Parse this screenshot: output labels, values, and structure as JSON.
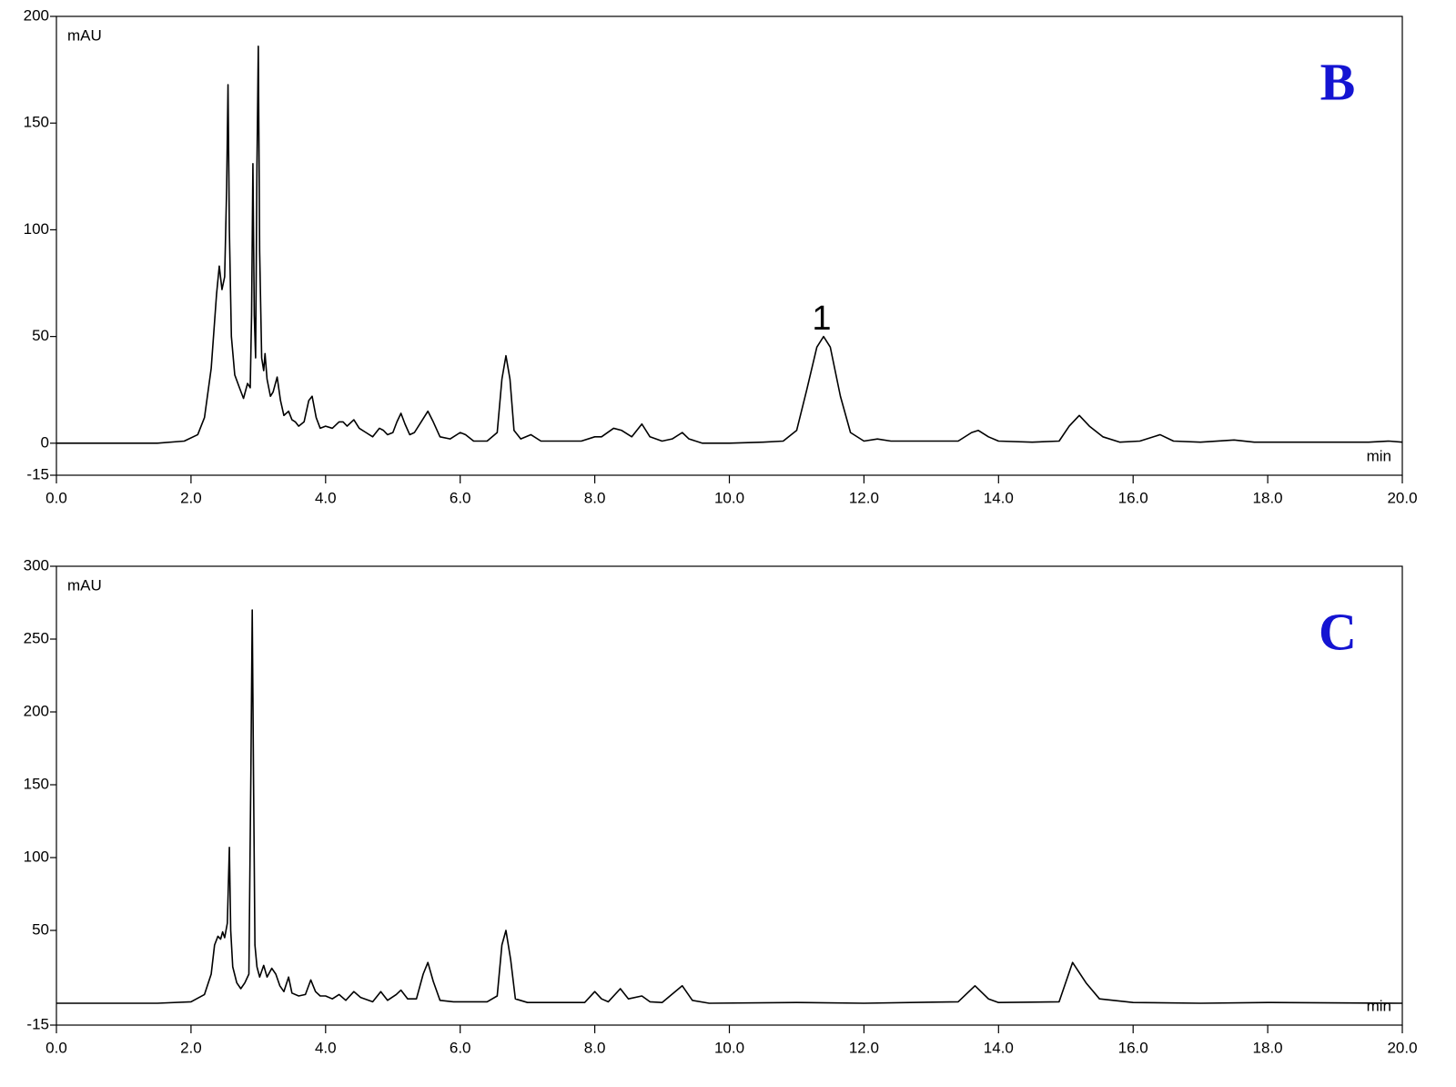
{
  "chart_data": [
    {
      "type": "line",
      "label": "B",
      "ylabel": "mAU",
      "xlabel": "min",
      "annotation": "1",
      "color": "#000000",
      "xlim": [
        0,
        20
      ],
      "ylim": [
        -15,
        200
      ],
      "xticks": [
        {
          "value": 0,
          "label": "0.0"
        },
        {
          "value": 2,
          "label": "2.0"
        },
        {
          "value": 4,
          "label": "4.0"
        },
        {
          "value": 6,
          "label": "6.0"
        },
        {
          "value": 8,
          "label": "8.0"
        },
        {
          "value": 10,
          "label": "10.0"
        },
        {
          "value": 12,
          "label": "12.0"
        },
        {
          "value": 14,
          "label": "14.0"
        },
        {
          "value": 16,
          "label": "16.0"
        },
        {
          "value": 18,
          "label": "18.0"
        },
        {
          "value": 20,
          "label": "20.0"
        }
      ],
      "yticks": [
        -15,
        0,
        50,
        100,
        150,
        200
      ],
      "x": [
        0,
        1.5,
        1.9,
        2.1,
        2.2,
        2.3,
        2.38,
        2.42,
        2.46,
        2.5,
        2.53,
        2.55,
        2.57,
        2.6,
        2.65,
        2.72,
        2.78,
        2.84,
        2.88,
        2.9,
        2.92,
        2.94,
        2.96,
        2.98,
        3.0,
        3.02,
        3.05,
        3.08,
        3.1,
        3.13,
        3.18,
        3.22,
        3.28,
        3.33,
        3.38,
        3.45,
        3.5,
        3.55,
        3.6,
        3.68,
        3.75,
        3.8,
        3.86,
        3.92,
        4.0,
        4.1,
        4.2,
        4.26,
        4.32,
        4.42,
        4.5,
        4.6,
        4.7,
        4.8,
        4.86,
        4.92,
        5.0,
        5.06,
        5.12,
        5.18,
        5.25,
        5.32,
        5.42,
        5.52,
        5.6,
        5.7,
        5.85,
        6.0,
        6.08,
        6.2,
        6.4,
        6.55,
        6.62,
        6.68,
        6.74,
        6.8,
        6.9,
        7.05,
        7.2,
        7.5,
        7.8,
        8.0,
        8.1,
        8.28,
        8.4,
        8.55,
        8.7,
        8.82,
        9.0,
        9.15,
        9.3,
        9.4,
        9.6,
        10.0,
        10.5,
        10.8,
        11.0,
        11.15,
        11.3,
        11.4,
        11.5,
        11.65,
        11.8,
        12.0,
        12.2,
        12.4,
        13.0,
        13.4,
        13.6,
        13.7,
        13.85,
        14.0,
        14.5,
        14.9,
        15.05,
        15.2,
        15.35,
        15.55,
        15.8,
        16.1,
        16.4,
        16.6,
        17.0,
        17.5,
        17.8,
        18.5,
        19.0,
        19.5,
        19.8,
        20.0
      ],
      "values": [
        0,
        0,
        1,
        4,
        12,
        35,
        70,
        83,
        72,
        78,
        120,
        168,
        100,
        50,
        32,
        26,
        21,
        28,
        26,
        60,
        131,
        60,
        40,
        130,
        186,
        90,
        40,
        34,
        42,
        30,
        22,
        24,
        31,
        20,
        13,
        15,
        11,
        10,
        8,
        10,
        20,
        22,
        12,
        7,
        8,
        7,
        10,
        10,
        8,
        11,
        7,
        5,
        3,
        7,
        6,
        4,
        5,
        10,
        14,
        9,
        4,
        5,
        10,
        15,
        10,
        3,
        2,
        5,
        4,
        1,
        1,
        5,
        30,
        41,
        30,
        6,
        2,
        4,
        1,
        1,
        1,
        3,
        3,
        7,
        6,
        3,
        9,
        3,
        1,
        2,
        5,
        2,
        0,
        0,
        0.5,
        1,
        6,
        25,
        45,
        50,
        45,
        22,
        5,
        1,
        2,
        1,
        1,
        1,
        5,
        6,
        3,
        1,
        0.5,
        1,
        8,
        13,
        8,
        3,
        0.5,
        1,
        4,
        1,
        0.5,
        1.5,
        0.5,
        0.5,
        0.5,
        0.5,
        1,
        0.5
      ]
    },
    {
      "type": "line",
      "label": "C",
      "ylabel": "mAU",
      "xlabel": "min",
      "color": "#000000",
      "xlim": [
        0,
        20
      ],
      "ylim": [
        -15,
        300
      ],
      "xticks": [
        {
          "value": 0,
          "label": "0.0"
        },
        {
          "value": 2,
          "label": "2.0"
        },
        {
          "value": 4,
          "label": "4.0"
        },
        {
          "value": 6,
          "label": "6.0"
        },
        {
          "value": 8,
          "label": "8.0"
        },
        {
          "value": 10,
          "label": "10.0"
        },
        {
          "value": 12,
          "label": "12.0"
        },
        {
          "value": 14,
          "label": "14.0"
        },
        {
          "value": 16,
          "label": "16.0"
        },
        {
          "value": 18,
          "label": "18.0"
        },
        {
          "value": 20,
          "label": "20.0"
        }
      ],
      "yticks": [
        -15,
        50,
        100,
        150,
        200,
        250,
        300
      ],
      "x": [
        0,
        1.5,
        2.0,
        2.2,
        2.3,
        2.35,
        2.4,
        2.44,
        2.47,
        2.5,
        2.54,
        2.57,
        2.59,
        2.62,
        2.68,
        2.74,
        2.8,
        2.86,
        2.89,
        2.91,
        2.93,
        2.95,
        2.98,
        3.02,
        3.08,
        3.13,
        3.2,
        3.26,
        3.32,
        3.38,
        3.45,
        3.5,
        3.6,
        3.7,
        3.78,
        3.85,
        3.92,
        4.0,
        4.1,
        4.2,
        4.3,
        4.42,
        4.52,
        4.7,
        4.82,
        4.92,
        5.05,
        5.12,
        5.22,
        5.35,
        5.45,
        5.52,
        5.6,
        5.7,
        5.9,
        6.4,
        6.55,
        6.62,
        6.68,
        6.75,
        6.82,
        7.0,
        7.85,
        8.0,
        8.1,
        8.2,
        8.38,
        8.5,
        8.7,
        8.82,
        9.0,
        9.3,
        9.45,
        9.7,
        11.0,
        12.0,
        13.4,
        13.65,
        13.85,
        14.0,
        14.9,
        15.1,
        15.3,
        15.5,
        16.0,
        17.0,
        18.0,
        20.0
      ],
      "values": [
        0,
        0,
        1,
        6,
        20,
        40,
        46,
        44,
        49,
        45,
        55,
        107,
        50,
        25,
        14,
        10,
        14,
        20,
        160,
        270,
        150,
        40,
        25,
        18,
        26,
        18,
        24,
        20,
        12,
        8,
        18,
        7,
        5,
        6,
        16,
        8,
        5,
        5,
        3,
        6,
        2,
        8,
        4,
        1,
        8,
        2,
        6,
        9,
        3,
        3,
        20,
        28,
        15,
        2,
        1,
        1,
        5,
        40,
        50,
        30,
        3,
        0.5,
        0.5,
        8,
        3,
        1,
        10,
        3,
        5,
        1,
        0.5,
        12,
        2,
        0,
        0.5,
        0,
        1,
        12,
        3,
        0.5,
        1,
        28,
        14,
        3,
        0.5,
        0,
        0.5,
        0
      ]
    }
  ]
}
